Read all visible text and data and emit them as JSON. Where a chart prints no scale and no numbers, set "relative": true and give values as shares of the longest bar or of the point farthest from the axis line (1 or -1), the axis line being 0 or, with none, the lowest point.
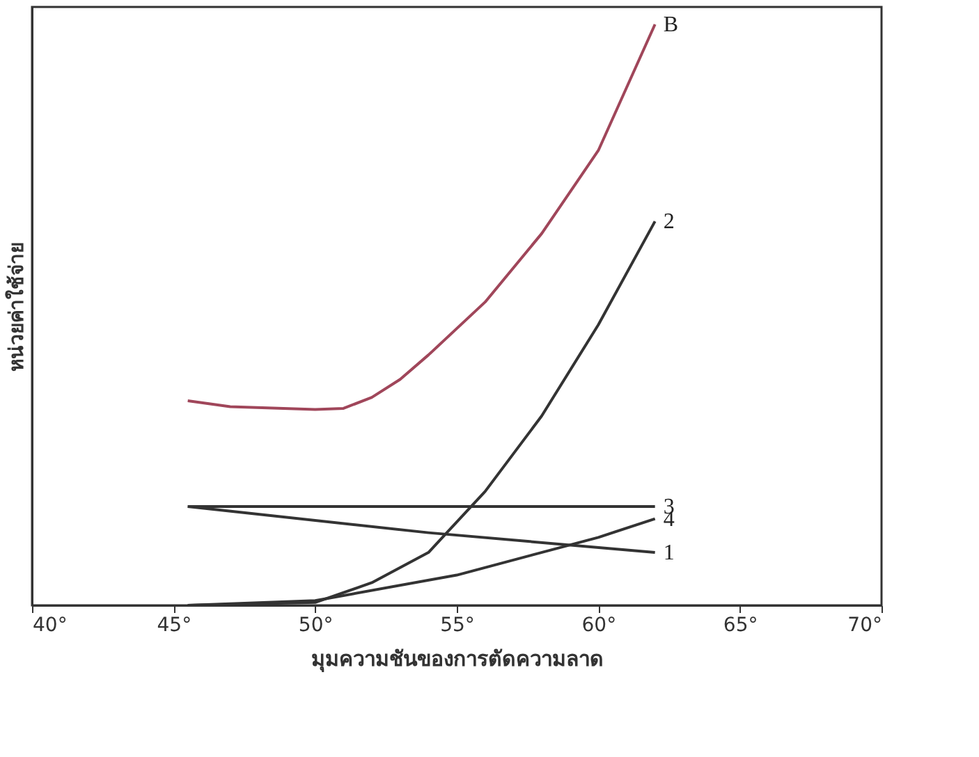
{
  "chart_data": {
    "type": "line",
    "relative": true,
    "xlabel": "มุมความชันของการตัดความลาด",
    "ylabel": "หน่วยค่าใช้จ่าย",
    "xlim": [
      40,
      70
    ],
    "xticks": [
      {
        "value": 40,
        "label": "40°"
      },
      {
        "value": 45,
        "label": "45°"
      },
      {
        "value": 50,
        "label": "50°"
      },
      {
        "value": 55,
        "label": "55°"
      },
      {
        "value": 60,
        "label": "60°"
      },
      {
        "value": 65,
        "label": "65°"
      },
      {
        "value": 70,
        "label": "70°"
      }
    ],
    "grid": false,
    "marker": "none",
    "line_style": "solid",
    "series": [
      {
        "name": "B",
        "color": "#a0465a",
        "x": [
          45.5,
          47,
          50,
          51,
          52,
          53,
          54,
          56,
          58,
          60,
          62
        ],
        "values": [
          0.352,
          0.342,
          0.337,
          0.339,
          0.358,
          0.389,
          0.431,
          0.522,
          0.64,
          0.783,
          1.0
        ]
      },
      {
        "name": "2",
        "color": "#333333",
        "x": [
          45.5,
          50,
          52,
          54,
          56,
          58,
          60,
          62
        ],
        "values": [
          0,
          0.005,
          0.039,
          0.091,
          0.196,
          0.326,
          0.483,
          0.661
        ]
      },
      {
        "name": "3",
        "color": "#333333",
        "x": [
          45.5,
          62
        ],
        "values": [
          0.17,
          0.17
        ]
      },
      {
        "name": "4",
        "color": "#333333",
        "x": [
          45.5,
          50,
          55,
          60,
          62
        ],
        "values": [
          0,
          0.008,
          0.052,
          0.117,
          0.149
        ]
      },
      {
        "name": "1",
        "color": "#333333",
        "x": [
          45.5,
          54,
          62
        ],
        "values": [
          0.17,
          0.125,
          0.091
        ]
      }
    ]
  }
}
